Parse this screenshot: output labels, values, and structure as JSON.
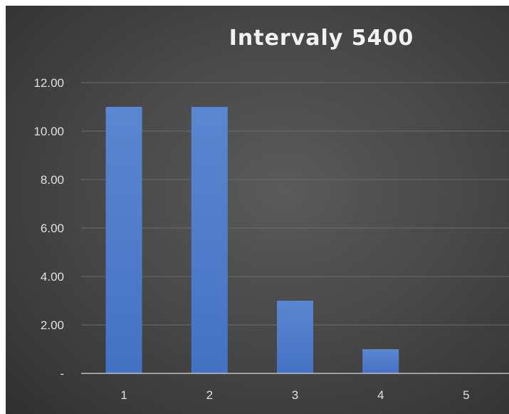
{
  "chart_data": {
    "type": "bar",
    "title": "Intervaly 5400",
    "xlabel": "",
    "ylabel": "",
    "categories": [
      "1",
      "2",
      "3",
      "4",
      "5"
    ],
    "values": [
      11,
      11,
      3,
      1,
      0
    ],
    "ylim": [
      0,
      12
    ],
    "y_ticks": [
      0,
      2,
      4,
      6,
      8,
      10,
      12
    ],
    "y_tick_labels": [
      "-",
      "2.00",
      "4.00",
      "6.00",
      "8.00",
      "10.00",
      "12.00"
    ],
    "grid": true,
    "legend": "none",
    "colors": {
      "bar": "#4472c4",
      "bar_top": "#5b86d0",
      "grid": "#6a6a6a",
      "axis": "#bfbfbf",
      "tick_text": "#e0e0e0",
      "title_text": "#f2f2f2"
    }
  }
}
